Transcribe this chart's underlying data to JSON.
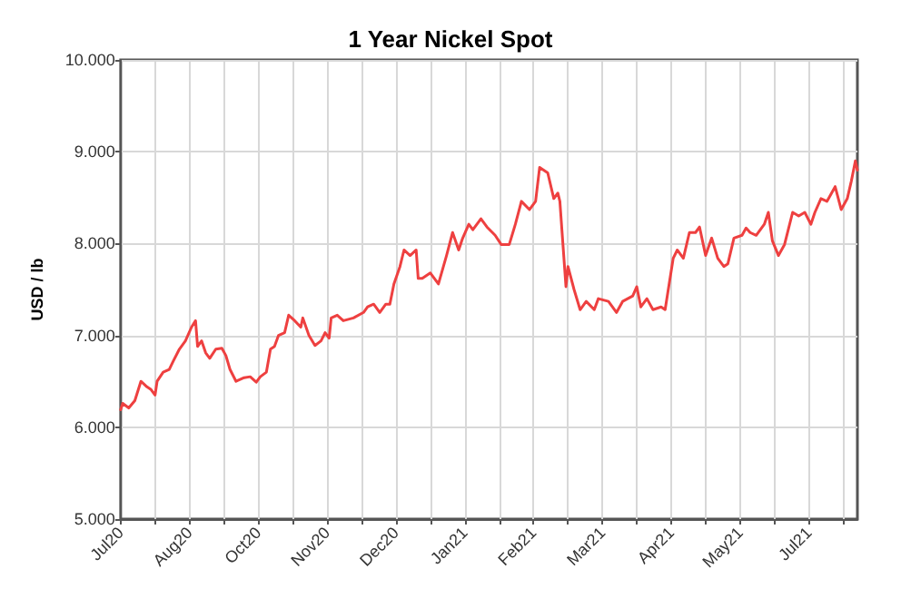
{
  "chart_data": {
    "type": "line",
    "title": "1 Year Nickel Spot",
    "ylabel": "USD / lb",
    "xlim": [
      "2020-07-27",
      "2021-07-26"
    ],
    "xticks": [
      {
        "value": "2020-07-27",
        "label": "Jul20"
      },
      {
        "value": "2020-08-13",
        "label": null
      },
      {
        "value": "2020-08-30",
        "label": "Aug20"
      },
      {
        "value": "2020-09-16",
        "label": null
      },
      {
        "value": "2020-10-03",
        "label": "Oct20"
      },
      {
        "value": "2020-10-20",
        "label": null
      },
      {
        "value": "2020-11-06",
        "label": "Nov20"
      },
      {
        "value": "2020-11-23",
        "label": null
      },
      {
        "value": "2020-12-10",
        "label": "Dec20"
      },
      {
        "value": "2020-12-27",
        "label": null
      },
      {
        "value": "2021-01-13",
        "label": "Jan21"
      },
      {
        "value": "2021-01-30",
        "label": null
      },
      {
        "value": "2021-02-16",
        "label": "Feb21"
      },
      {
        "value": "2021-03-05",
        "label": null
      },
      {
        "value": "2021-03-22",
        "label": "Mar21"
      },
      {
        "value": "2021-04-08",
        "label": null
      },
      {
        "value": "2021-04-25",
        "label": "Apr21"
      },
      {
        "value": "2021-05-12",
        "label": null
      },
      {
        "value": "2021-05-29",
        "label": "May21"
      },
      {
        "value": "2021-06-15",
        "label": null
      },
      {
        "value": "2021-07-02",
        "label": "Jul21"
      },
      {
        "value": "2021-07-19",
        "label": null
      }
    ],
    "ylim": [
      5000,
      10000
    ],
    "yticks": [
      {
        "value": 5000,
        "label": "5.000"
      },
      {
        "value": 6000,
        "label": "6.000"
      },
      {
        "value": 7000,
        "label": "7.000"
      },
      {
        "value": 8000,
        "label": "8.000"
      },
      {
        "value": 9000,
        "label": "9.000"
      },
      {
        "value": 10000,
        "label": "10.000"
      }
    ],
    "grid": true,
    "marker": "none",
    "line_style": "solid",
    "series": [
      {
        "color": "#ee4040",
        "x": [
          "2020-07-27",
          "2020-07-28",
          "2020-07-31",
          "2020-08-03",
          "2020-08-06",
          "2020-08-09",
          "2020-08-11",
          "2020-08-13",
          "2020-08-14",
          "2020-08-17",
          "2020-08-20",
          "2020-08-22",
          "2020-08-25",
          "2020-08-28",
          "2020-08-31",
          "2020-09-02",
          "2020-09-03",
          "2020-09-05",
          "2020-09-07",
          "2020-09-09",
          "2020-09-12",
          "2020-09-15",
          "2020-09-17",
          "2020-09-19",
          "2020-09-22",
          "2020-09-26",
          "2020-09-29",
          "2020-10-02",
          "2020-10-04",
          "2020-10-07",
          "2020-10-09",
          "2020-10-11",
          "2020-10-13",
          "2020-10-16",
          "2020-10-18",
          "2020-10-21",
          "2020-10-24",
          "2020-10-25",
          "2020-10-28",
          "2020-10-31",
          "2020-11-03",
          "2020-11-05",
          "2020-11-07",
          "2020-11-08",
          "2020-11-11",
          "2020-11-14",
          "2020-11-19",
          "2020-11-24",
          "2020-11-26",
          "2020-11-29",
          "2020-12-02",
          "2020-12-05",
          "2020-12-07",
          "2020-12-09",
          "2020-12-12",
          "2020-12-14",
          "2020-12-17",
          "2020-12-20",
          "2020-12-21",
          "2020-12-23",
          "2020-12-27",
          "2020-12-31",
          "2021-01-04",
          "2021-01-07",
          "2021-01-10",
          "2021-01-12",
          "2021-01-15",
          "2021-01-17",
          "2021-01-21",
          "2021-01-24",
          "2021-01-28",
          "2021-01-31",
          "2021-02-04",
          "2021-02-07",
          "2021-02-10",
          "2021-02-14",
          "2021-02-17",
          "2021-02-19",
          "2021-02-23",
          "2021-02-26",
          "2021-02-28",
          "2021-03-01",
          "2021-03-04",
          "2021-03-05",
          "2021-03-08",
          "2021-03-11",
          "2021-03-14",
          "2021-03-18",
          "2021-03-20",
          "2021-03-25",
          "2021-03-29",
          "2021-04-01",
          "2021-04-06",
          "2021-04-08",
          "2021-04-10",
          "2021-04-13",
          "2021-04-16",
          "2021-04-20",
          "2021-04-22",
          "2021-04-26",
          "2021-04-28",
          "2021-05-01",
          "2021-05-04",
          "2021-05-07",
          "2021-05-09",
          "2021-05-12",
          "2021-05-15",
          "2021-05-18",
          "2021-05-21",
          "2021-05-23",
          "2021-05-26",
          "2021-05-30",
          "2021-06-01",
          "2021-06-03",
          "2021-06-06",
          "2021-06-10",
          "2021-06-12",
          "2021-06-14",
          "2021-06-17",
          "2021-06-20",
          "2021-06-24",
          "2021-06-27",
          "2021-06-30",
          "2021-07-03",
          "2021-07-05",
          "2021-07-08",
          "2021-07-11",
          "2021-07-15",
          "2021-07-18",
          "2021-07-21",
          "2021-07-23",
          "2021-07-25",
          "2021-07-26"
        ],
        "values": [
          6190,
          6260,
          6210,
          6290,
          6500,
          6440,
          6410,
          6350,
          6500,
          6600,
          6630,
          6720,
          6850,
          6940,
          7090,
          7160,
          6880,
          6940,
          6810,
          6750,
          6850,
          6860,
          6780,
          6630,
          6500,
          6540,
          6550,
          6490,
          6550,
          6600,
          6850,
          6880,
          7000,
          7030,
          7220,
          7160,
          7090,
          7190,
          7000,
          6890,
          6940,
          7030,
          6970,
          7190,
          7220,
          7160,
          7190,
          7250,
          7310,
          7340,
          7250,
          7340,
          7340,
          7560,
          7750,
          7930,
          7870,
          7930,
          7620,
          7620,
          7680,
          7560,
          7870,
          8120,
          7930,
          8060,
          8210,
          8150,
          8270,
          8180,
          8090,
          7990,
          7990,
          8210,
          8460,
          8370,
          8460,
          8830,
          8770,
          8490,
          8550,
          8460,
          7530,
          7750,
          7500,
          7280,
          7370,
          7280,
          7400,
          7370,
          7250,
          7370,
          7430,
          7530,
          7310,
          7400,
          7280,
          7310,
          7280,
          7840,
          7930,
          7840,
          8120,
          8120,
          8180,
          7870,
          8060,
          7840,
          7750,
          7780,
          8060,
          8090,
          8170,
          8120,
          8090,
          8210,
          8340,
          8030,
          7870,
          7990,
          8340,
          8300,
          8340,
          8210,
          8340,
          8490,
          8460,
          8620,
          8370,
          8490,
          8680,
          8900,
          8800
        ]
      }
    ]
  }
}
